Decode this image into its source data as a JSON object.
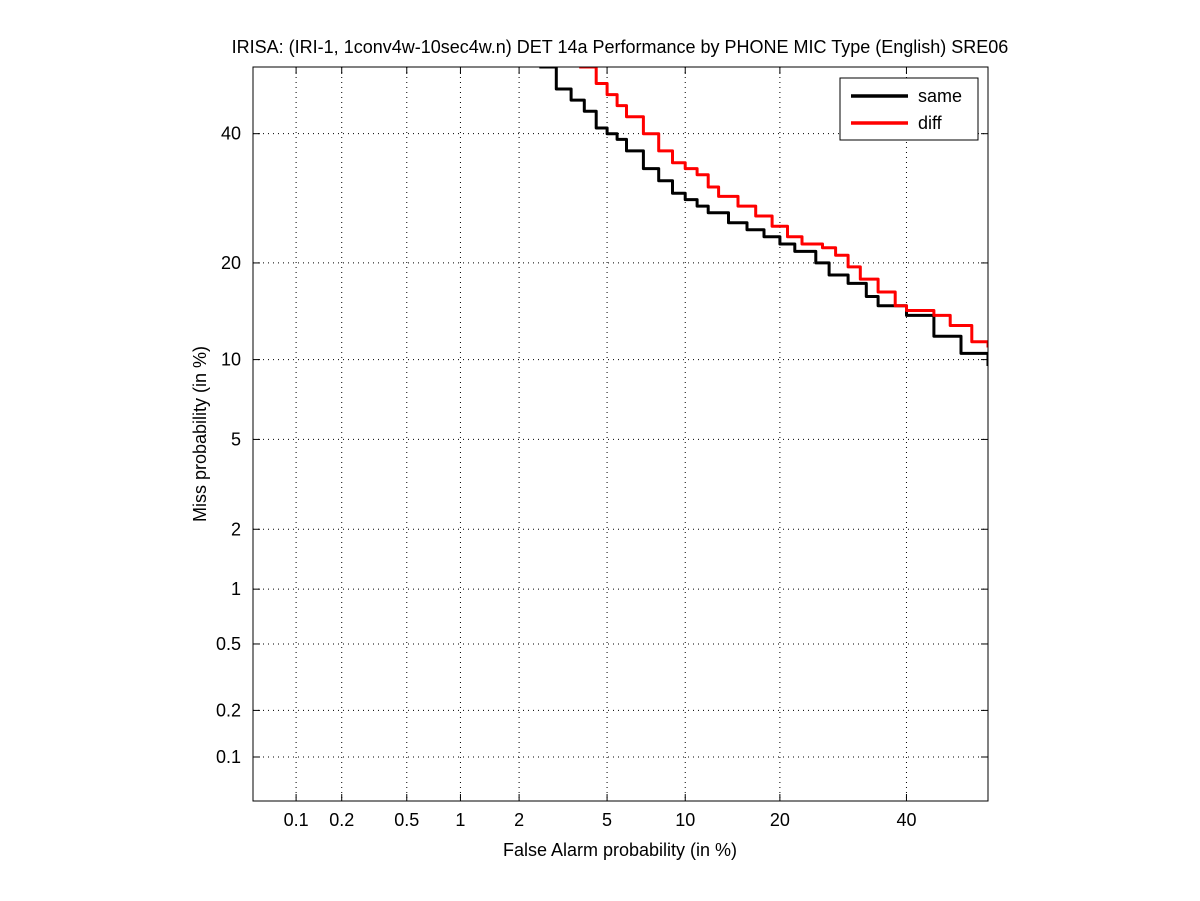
{
  "chart_data": {
    "type": "line",
    "title": "IRISA: (IRI-1, 1conv4w-10sec4w.n) DET 14a Performance by PHONE MIC Type (English) SRE06",
    "xlabel": "False Alarm probability (in %)",
    "ylabel": "Miss probability (in %)",
    "scale": "normal-deviate (probit) on both axes",
    "xlim": [
      0.05,
      55
    ],
    "ylim": [
      0.05,
      52
    ],
    "x_ticks": [
      0.1,
      0.2,
      0.5,
      1,
      2,
      5,
      10,
      20,
      40
    ],
    "x_tick_labels": [
      "0.1",
      "0.2",
      "0.5",
      "1",
      "2",
      "5",
      "10",
      "20",
      "40"
    ],
    "y_ticks": [
      0.1,
      0.2,
      0.5,
      1,
      2,
      5,
      10,
      20,
      40
    ],
    "y_tick_labels": [
      "0.1",
      "0.2",
      "0.5",
      "1",
      "2",
      "5",
      "10",
      "20",
      "40"
    ],
    "grid": true,
    "legend_position": "top-right",
    "series": [
      {
        "name": "same",
        "color": "#000000",
        "points": [
          [
            2.5,
            52
          ],
          [
            3.0,
            48
          ],
          [
            3.5,
            46
          ],
          [
            4.0,
            44
          ],
          [
            4.5,
            41
          ],
          [
            5.0,
            40
          ],
          [
            5.5,
            39
          ],
          [
            6.0,
            37
          ],
          [
            7.0,
            34
          ],
          [
            8.0,
            32
          ],
          [
            9.0,
            30
          ],
          [
            10.0,
            29
          ],
          [
            11.0,
            28
          ],
          [
            12.0,
            27
          ],
          [
            14.0,
            25.5
          ],
          [
            16.0,
            24.5
          ],
          [
            18.0,
            23.5
          ],
          [
            20.0,
            22.5
          ],
          [
            22.0,
            21.5
          ],
          [
            25.0,
            20
          ],
          [
            27.0,
            18.5
          ],
          [
            30.0,
            17.5
          ],
          [
            33.0,
            16
          ],
          [
            35.0,
            15
          ],
          [
            40.0,
            14
          ],
          [
            45.0,
            12
          ],
          [
            50.0,
            10.5
          ],
          [
            55.0,
            9.5
          ]
        ]
      },
      {
        "name": "diff",
        "color": "#ff0000",
        "points": [
          [
            3.8,
            52
          ],
          [
            4.5,
            49
          ],
          [
            5.0,
            47
          ],
          [
            5.5,
            45
          ],
          [
            6.0,
            43
          ],
          [
            7.0,
            40
          ],
          [
            8.0,
            37
          ],
          [
            9.0,
            35
          ],
          [
            10.0,
            34
          ],
          [
            11.0,
            33
          ],
          [
            12.0,
            31
          ],
          [
            13.0,
            29.5
          ],
          [
            15.0,
            28
          ],
          [
            17.0,
            26.5
          ],
          [
            19.0,
            25
          ],
          [
            21.0,
            23.5
          ],
          [
            23.0,
            22.5
          ],
          [
            26.0,
            22
          ],
          [
            28.0,
            21
          ],
          [
            30.0,
            19.5
          ],
          [
            32.0,
            18
          ],
          [
            35.0,
            16.5
          ],
          [
            38.0,
            15
          ],
          [
            40.0,
            14.5
          ],
          [
            45.0,
            14
          ],
          [
            48.0,
            13
          ],
          [
            52.0,
            11.5
          ],
          [
            55.0,
            11
          ]
        ]
      }
    ]
  }
}
